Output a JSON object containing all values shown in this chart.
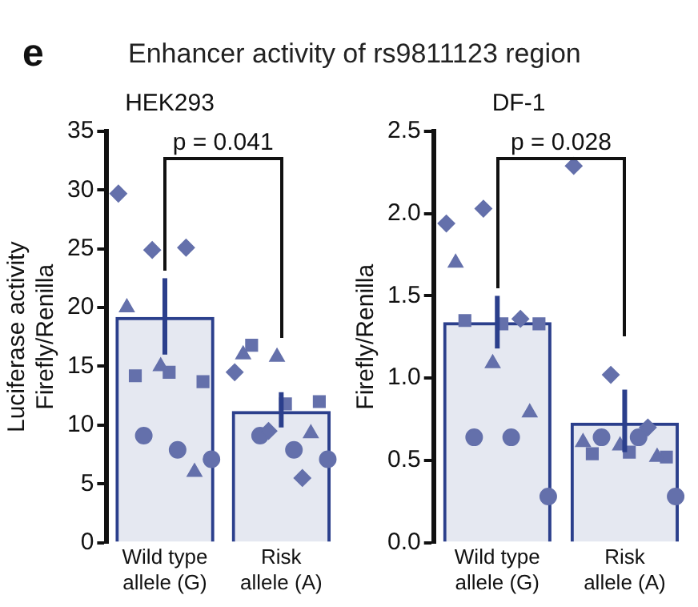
{
  "chart_data": [
    {
      "type": "bar",
      "title": "Enhancer activity of rs9811123 region",
      "subtitle": "HEK293",
      "ylabel": "Luciferase activity\nFirefly/Renilla",
      "annotations": [
        "e",
        "p = 0.041"
      ],
      "categories": [
        "Wild type\nallele (G)",
        "Risk\nallele (A)"
      ],
      "values": [
        19.2,
        11.2
      ],
      "color": "#2b3f8c",
      "errors": [
        [
          16,
          22.5
        ],
        [
          9.8,
          12.8
        ]
      ],
      "ylim": [
        0,
        35
      ],
      "yticks": [
        0,
        5,
        10,
        15,
        20,
        25,
        30,
        35
      ],
      "grid": false,
      "legend": false,
      "series": [
        {
          "type": "scatter",
          "marker": "diamond",
          "color": "#6470ab",
          "x": [
            "Wild type\nallele (G)",
            "Wild type\nallele (G)",
            "Wild type\nallele (G)",
            "Risk\nallele (A)",
            "Risk\nallele (A)",
            "Risk\nallele (A)"
          ],
          "values": [
            29.7,
            24.9,
            25.1,
            14.5,
            9.5,
            5.5
          ]
        },
        {
          "type": "scatter",
          "marker": "triangle",
          "color": "#6470ab",
          "x": [
            "Wild type\nallele (G)",
            "Wild type\nallele (G)",
            "Wild type\nallele (G)",
            "Risk\nallele (A)",
            "Risk\nallele (A)",
            "Risk\nallele (A)"
          ],
          "values": [
            20,
            15,
            6,
            16,
            15.8,
            9.3
          ]
        },
        {
          "type": "scatter",
          "marker": "square",
          "color": "#6470ab",
          "x": [
            "Wild type\nallele (G)",
            "Wild type\nallele (G)",
            "Wild type\nallele (G)",
            "Risk\nallele (A)",
            "Risk\nallele (A)",
            "Risk\nallele (A)"
          ],
          "values": [
            14.2,
            14.5,
            13.7,
            16.8,
            11.8,
            12
          ]
        },
        {
          "type": "scatter",
          "marker": "circle",
          "color": "#6470ab",
          "x": [
            "Wild type\nallele (G)",
            "Wild type\nallele (G)",
            "Wild type\nallele (G)",
            "Risk\nallele (A)",
            "Risk\nallele (A)",
            "Risk\nallele (A)"
          ],
          "values": [
            9.1,
            7.9,
            7.1,
            9.1,
            7.9,
            7.1
          ]
        }
      ]
    },
    {
      "type": "bar",
      "subtitle": "DF-1",
      "ylabel": "Firefly/Renilla",
      "annotations": [
        "p = 0.028"
      ],
      "categories": [
        "Wild type\nallele (G)",
        "Risk\nallele (A)"
      ],
      "values": [
        1.34,
        0.73
      ],
      "color": "#2b3f8c",
      "errors": [
        [
          1.18,
          1.5
        ],
        [
          0.55,
          0.93
        ]
      ],
      "ylim": [
        0,
        2.5
      ],
      "yticks": [
        {
          "value": 0,
          "label": "0.0"
        },
        {
          "value": 0.5,
          "label": "0.5"
        },
        {
          "value": 1,
          "label": "1.0"
        },
        {
          "value": 1.5,
          "label": "1.5"
        },
        {
          "value": 2,
          "label": "2.0"
        },
        {
          "value": 2.5,
          "label": "2.5"
        }
      ],
      "grid": false,
      "legend": false,
      "series": [
        {
          "type": "scatter",
          "marker": "diamond",
          "color": "#6470ab",
          "x": [
            "Wild type\nallele (G)",
            "Wild type\nallele (G)",
            "Wild type\nallele (G)",
            "Risk\nallele (A)",
            "Risk\nallele (A)",
            "Risk\nallele (A)"
          ],
          "values": [
            1.94,
            2.03,
            1.36,
            2.29,
            1.02,
            0.7
          ]
        },
        {
          "type": "scatter",
          "marker": "triangle",
          "color": "#6470ab",
          "x": [
            "Wild type\nallele (G)",
            "Wild type\nallele (G)",
            "Wild type\nallele (G)",
            "Risk\nallele (A)",
            "Risk\nallele (A)",
            "Risk\nallele (A)"
          ],
          "values": [
            1.7,
            1.09,
            0.79,
            0.61,
            0.59,
            0.52
          ]
        },
        {
          "type": "scatter",
          "marker": "square",
          "color": "#6470ab",
          "x": [
            "Wild type\nallele (G)",
            "Wild type\nallele (G)",
            "Wild type\nallele (G)",
            "Risk\nallele (A)",
            "Risk\nallele (A)",
            "Risk\nallele (A)"
          ],
          "values": [
            1.35,
            1.33,
            1.33,
            0.54,
            0.55,
            0.52
          ]
        },
        {
          "type": "scatter",
          "marker": "circle",
          "color": "#6470ab",
          "x": [
            "Wild type\nallele (G)",
            "Wild type\nallele (G)",
            "Wild type\nallele (G)",
            "Risk\nallele (A)",
            "Risk\nallele (A)",
            "Risk\nallele (A)"
          ],
          "values": [
            0.64,
            0.64,
            0.28,
            0.64,
            0.64,
            0.28
          ]
        }
      ]
    }
  ]
}
